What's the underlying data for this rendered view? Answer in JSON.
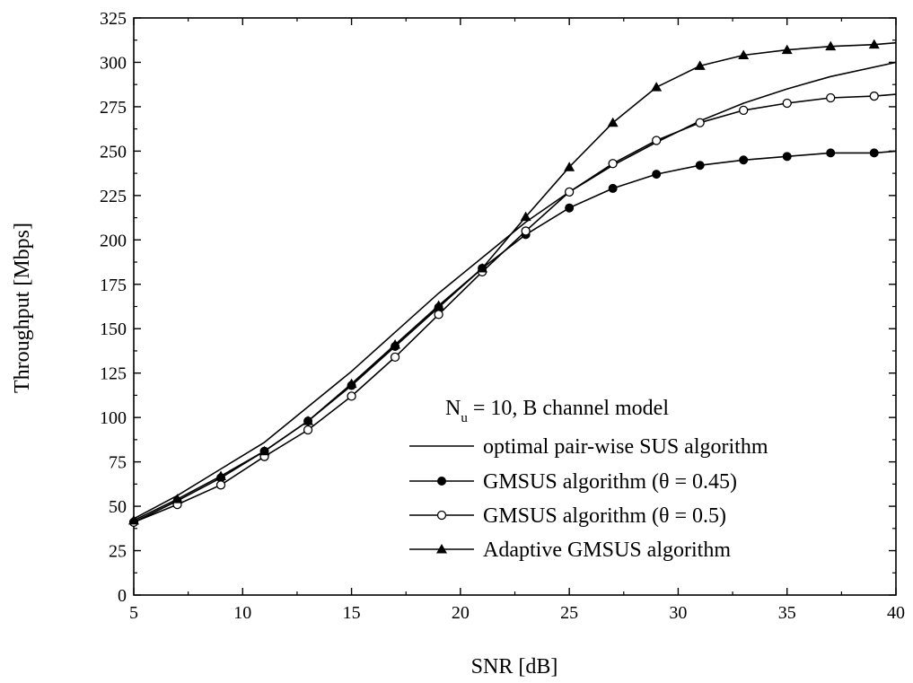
{
  "chart_data": {
    "type": "line",
    "title": "",
    "xlabel": "SNR [dB]",
    "ylabel": "Throughput [Mbps]",
    "xlim": [
      5,
      40
    ],
    "ylim": [
      0,
      325
    ],
    "xticks": [
      5,
      10,
      15,
      20,
      25,
      30,
      35,
      40
    ],
    "yticks": [
      0,
      25,
      50,
      75,
      100,
      125,
      150,
      175,
      200,
      225,
      250,
      275,
      300,
      325
    ],
    "grid": false,
    "legend_placement": "lower-right",
    "legend_title": {
      "main": "N",
      "sub": "u",
      "rest": " = 10, B channel model"
    },
    "series": [
      {
        "name": "optimal pair-wise SUS algorithm",
        "marker": "none",
        "x": [
          5,
          7,
          9,
          11,
          13,
          15,
          17,
          19,
          21,
          23,
          25,
          27,
          29,
          31,
          33,
          35,
          37,
          40
        ],
        "values": [
          43,
          56,
          71,
          86,
          106,
          126,
          148,
          170,
          190,
          210,
          227,
          242,
          255,
          267,
          277,
          285,
          292,
          300
        ]
      },
      {
        "name": "GMSUS algorithm (θ = 0.45)",
        "marker": "filled-circle",
        "x": [
          5,
          7,
          9,
          11,
          13,
          15,
          17,
          19,
          21,
          23,
          25,
          27,
          29,
          31,
          33,
          35,
          37,
          39,
          40
        ],
        "values": [
          41,
          53,
          66,
          81,
          98,
          118,
          140,
          162,
          184,
          203,
          218,
          229,
          237,
          242,
          245,
          247,
          249,
          249,
          250
        ],
        "markers_x": [
          5,
          7,
          9,
          11,
          13,
          15,
          17,
          19,
          21,
          23,
          25,
          27,
          29,
          31,
          33,
          35,
          37,
          39
        ]
      },
      {
        "name": "GMSUS algorithm (θ = 0.5)",
        "marker": "open-circle",
        "x": [
          5,
          7,
          9,
          11,
          13,
          15,
          17,
          19,
          21,
          23,
          25,
          27,
          29,
          31,
          33,
          35,
          37,
          39,
          40
        ],
        "values": [
          41,
          51,
          62,
          78,
          93,
          112,
          134,
          158,
          182,
          205,
          227,
          243,
          256,
          266,
          273,
          277,
          280,
          281,
          282
        ],
        "markers_x": [
          5,
          7,
          9,
          11,
          13,
          15,
          17,
          19,
          21,
          23,
          25,
          27,
          29,
          31,
          33,
          35,
          37,
          39
        ]
      },
      {
        "name": "Adaptive GMSUS algorithm",
        "marker": "filled-triangle",
        "x": [
          5,
          7,
          9,
          11,
          13,
          15,
          17,
          19,
          21,
          23,
          25,
          27,
          29,
          31,
          33,
          35,
          37,
          39,
          40
        ],
        "values": [
          42,
          54,
          67,
          81,
          98,
          119,
          141,
          163,
          184,
          213,
          241,
          266,
          286,
          298,
          304,
          307,
          309,
          310,
          311
        ],
        "markers_x": [
          5,
          7,
          9,
          11,
          13,
          15,
          17,
          19,
          21,
          23,
          25,
          27,
          29,
          31,
          33,
          35,
          37,
          39
        ]
      }
    ]
  }
}
